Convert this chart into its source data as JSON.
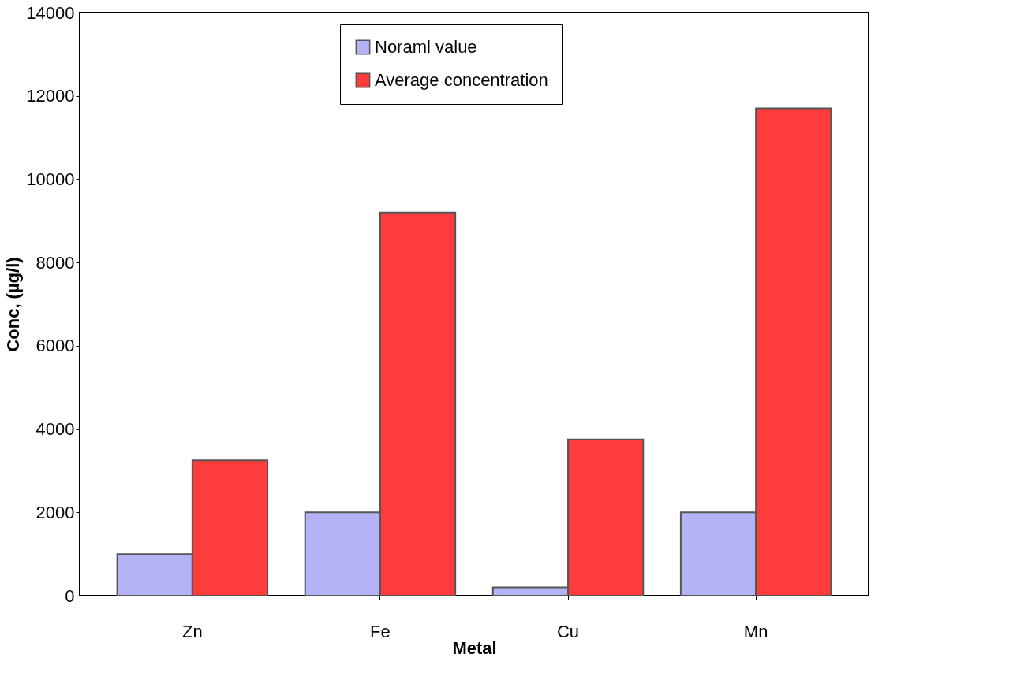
{
  "chart_data": {
    "type": "bar",
    "xlabel": "Metal",
    "ylabel": "Conc, (µg/l)",
    "categories": [
      "Zn",
      "Fe",
      "Cu",
      "Mn"
    ],
    "series": [
      {
        "name": "Noraml value",
        "color": "#b3b3f5",
        "values": [
          1000,
          2000,
          200,
          2000
        ]
      },
      {
        "name": "Average concentration",
        "color": "#ff3b3b",
        "values": [
          3250,
          9200,
          3750,
          11700
        ]
      }
    ],
    "ylim": [
      0,
      14000
    ],
    "yticks": [
      0,
      2000,
      4000,
      6000,
      8000,
      10000,
      12000,
      14000
    ],
    "grid": false,
    "legend": "top"
  }
}
